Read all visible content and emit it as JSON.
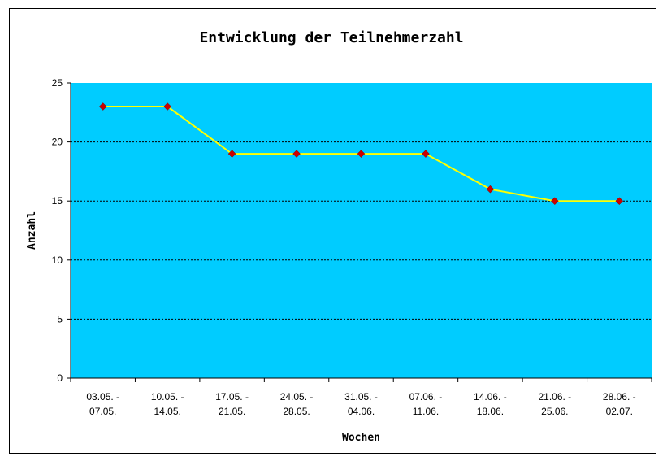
{
  "chart_data": {
    "type": "line",
    "title": "Entwicklung der Teilnehmerzahl",
    "xlabel": "Wochen",
    "ylabel": "Anzahl",
    "categories": [
      [
        "03.05. -",
        "07.05."
      ],
      [
        "10.05. -",
        "14.05."
      ],
      [
        "17.05. -",
        "21.05."
      ],
      [
        "24.05. -",
        "28.05."
      ],
      [
        "31.05. -",
        "04.06."
      ],
      [
        "07.06. -",
        "11.06."
      ],
      [
        "14.06. -",
        "18.06."
      ],
      [
        "21.06. -",
        "25.06."
      ],
      [
        "28.06. -",
        "02.07."
      ]
    ],
    "values": [
      23,
      23,
      19,
      19,
      19,
      19,
      16,
      15,
      15
    ],
    "ylim": [
      0,
      25
    ],
    "yticks": [
      0,
      5,
      10,
      15,
      20,
      25
    ],
    "grid": true,
    "colors": {
      "plot_background": "#00CCFF",
      "line": "#FFFF00",
      "marker": "#CC0000",
      "gridline": "#000000"
    }
  }
}
